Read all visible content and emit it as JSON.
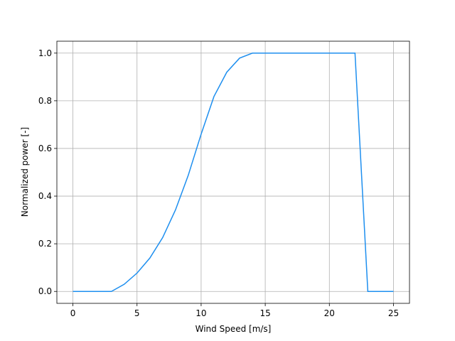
{
  "chart_data": {
    "type": "line",
    "x_label": "Wind Speed [m/s]",
    "y_label": "Normalized power [-]",
    "x": [
      0,
      1,
      2,
      3,
      4,
      5,
      6,
      7,
      8,
      9,
      10,
      11,
      12,
      13,
      14,
      15,
      16,
      17,
      18,
      19,
      20,
      21,
      22,
      23,
      24,
      25
    ],
    "series": [
      {
        "color": "#1e8fef",
        "values": [
          0,
          0,
          0,
          0,
          0.03,
          0.077,
          0.14,
          0.226,
          0.342,
          0.488,
          0.66,
          0.818,
          0.92,
          0.979,
          1.0,
          1.0,
          1.0,
          1.0,
          1.0,
          1.0,
          1.0,
          1.0,
          1.0,
          0,
          0,
          0
        ]
      }
    ],
    "xlim": [
      -1.25,
      26.25
    ],
    "xticks": [
      0,
      5,
      10,
      15,
      20,
      25
    ],
    "ylim": [
      -0.05,
      1.05
    ],
    "yticks": [
      {
        "value": 0,
        "label": "0.0"
      },
      {
        "value": 0.2,
        "label": "0.2"
      },
      {
        "value": 0.4,
        "label": "0.4"
      },
      {
        "value": 0.6,
        "label": "0.6"
      },
      {
        "value": 0.8,
        "label": "0.8"
      },
      {
        "value": 1.0,
        "label": "1.0"
      }
    ],
    "grid": true
  }
}
